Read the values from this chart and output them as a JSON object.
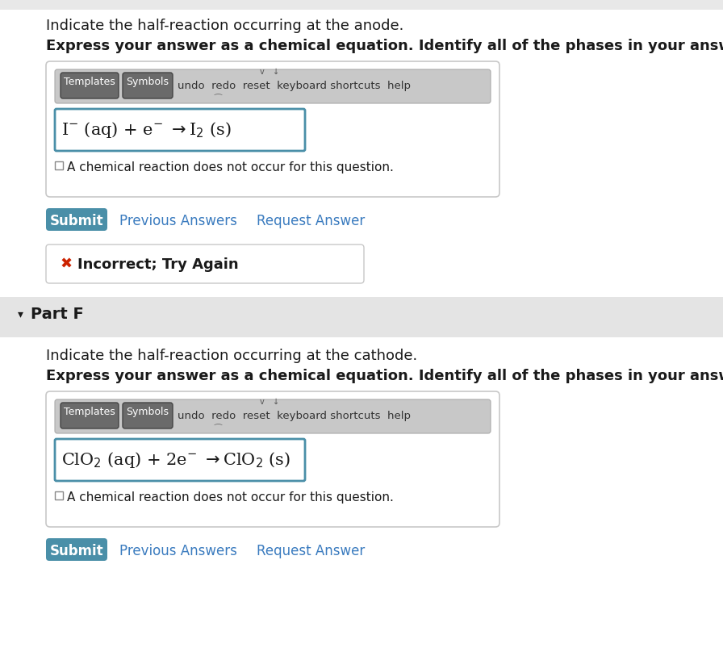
{
  "white": "#ffffff",
  "light_gray_top": "#e8e8e8",
  "border_color": "#c8c8c8",
  "blue_border": "#4a8fa8",
  "submit_btn_color": "#4a8fa8",
  "link_color": "#3a7bbf",
  "incorrect_red": "#cc2200",
  "text_color": "#1a1a1a",
  "part_f_bg": "#e4e4e4",
  "toolbar_bg_light": "#c8c8c8",
  "toolbar_btn_bg": "#6a6a6a",
  "toolbar_text": "#ffffff",
  "toolbar_plain_text": "#333333",
  "line1_plain": "Indicate the half-reaction occurring at the anode.",
  "line2_bold": "Express your answer as a chemical equation. Identify all of the phases in your answer.",
  "checkbox_text1": "A chemical reaction does not occur for this question.",
  "submit_label": "Submit",
  "prev_answers": "Previous Answers",
  "request_answer": "Request Answer",
  "incorrect_icon": "✖",
  "incorrect_text": "Incorrect; Try Again",
  "part_f_label": "Part F",
  "line3_plain": "Indicate the half-reaction occurring at the cathode.",
  "line4_bold": "Express your answer as a chemical equation. Identify all of the phases in your answer.",
  "checkbox_text2": "A chemical reaction does not occur for this question.",
  "fig_w": 8.96,
  "fig_h": 8.08,
  "dpi": 100
}
